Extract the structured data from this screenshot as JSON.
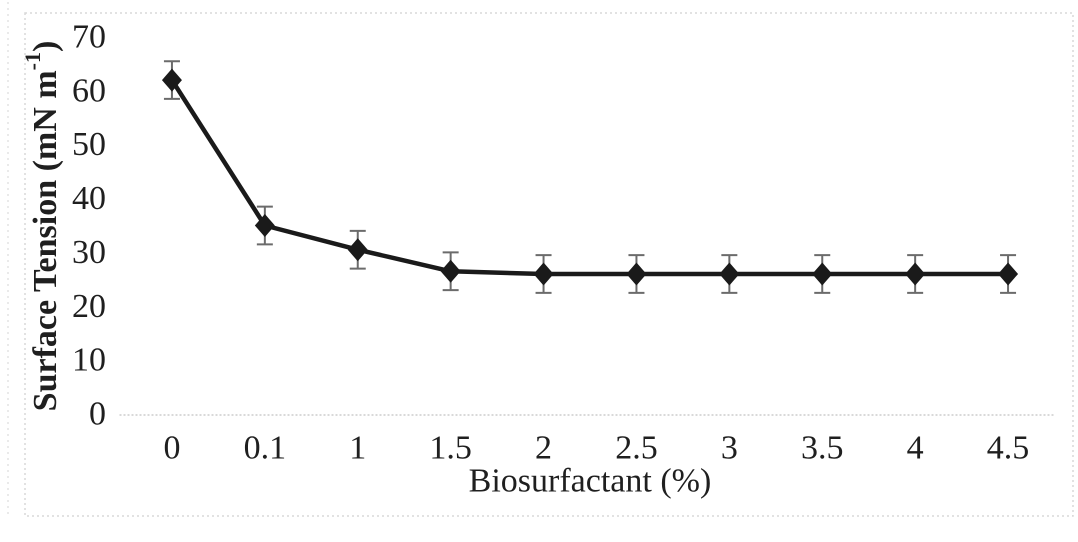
{
  "figure": {
    "background": "#ffffff",
    "border_color": "#d8d8d8",
    "text_color": "#1f1f1f"
  },
  "chart_data": {
    "type": "line",
    "title": "",
    "xlabel": "Biosurfactant (%)",
    "ylabel_prefix": "Surface Tension (mN m",
    "ylabel_superscript": "-1",
    "ylabel_suffix": ")",
    "categories": [
      "0",
      "0.1",
      "1",
      "1.5",
      "2",
      "2.5",
      "3",
      "3.5",
      "4",
      "4.5"
    ],
    "values": [
      62,
      35,
      30.5,
      26.5,
      26,
      26,
      26,
      26,
      26,
      26
    ],
    "error_bars": [
      3.5,
      3.5,
      3.5,
      3.5,
      3.5,
      3.5,
      3.5,
      3.5,
      3.5,
      3.5
    ],
    "y_ticks": [
      0,
      10,
      20,
      30,
      40,
      50,
      60,
      70
    ],
    "ylim": [
      0,
      70
    ],
    "grid": false,
    "legend": "none",
    "marker": "diamond",
    "line_color": "#1a1a1a",
    "marker_color": "#1a1a1a",
    "error_bar_color": "#6b6b6b",
    "axis_line_color": "#d9d9d9"
  }
}
